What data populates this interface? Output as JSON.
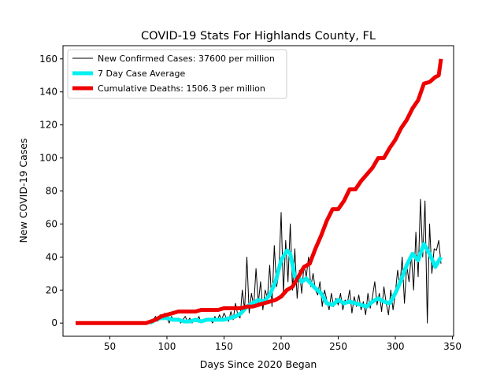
{
  "chart_data": {
    "type": "line",
    "title": "COVID-19 Stats For Highlands County, FL",
    "xlabel": "Days Since 2020 Began",
    "ylabel": "New COVID-19 Cases",
    "xlim": [
      9,
      351
    ],
    "ylim": [
      -8,
      168
    ],
    "xticks": [
      50,
      100,
      150,
      200,
      250,
      300,
      350
    ],
    "yticks": [
      0,
      20,
      40,
      60,
      80,
      100,
      120,
      140,
      160
    ],
    "grid": false,
    "legend_position": "top-left",
    "series": [
      {
        "name": "New Confirmed Cases: 37600 per million",
        "color": "#000000",
        "width": 1,
        "x": [
          85,
          88,
          90,
          92,
          94,
          96,
          98,
          100,
          102,
          104,
          106,
          108,
          110,
          112,
          114,
          116,
          118,
          120,
          122,
          124,
          126,
          128,
          130,
          132,
          134,
          136,
          138,
          140,
          142,
          144,
          146,
          148,
          150,
          152,
          154,
          156,
          158,
          160,
          162,
          164,
          166,
          168,
          170,
          172,
          174,
          176,
          178,
          180,
          182,
          184,
          186,
          188,
          190,
          192,
          194,
          196,
          198,
          200,
          202,
          204,
          206,
          208,
          210,
          212,
          214,
          216,
          218,
          220,
          222,
          224,
          226,
          228,
          230,
          232,
          234,
          236,
          238,
          240,
          242,
          244,
          246,
          248,
          250,
          252,
          254,
          256,
          258,
          260,
          262,
          264,
          266,
          268,
          270,
          272,
          274,
          276,
          278,
          280,
          282,
          284,
          286,
          288,
          290,
          292,
          294,
          296,
          298,
          300,
          302,
          304,
          306,
          308,
          310,
          312,
          314,
          316,
          318,
          320,
          322,
          324,
          326,
          328,
          330,
          332,
          334,
          336,
          338,
          340
        ],
        "y": [
          0,
          2,
          4,
          1,
          5,
          2,
          6,
          3,
          0,
          4,
          2,
          1,
          3,
          0,
          2,
          4,
          1,
          3,
          0,
          2,
          1,
          4,
          0,
          2,
          1,
          3,
          2,
          0,
          4,
          1,
          5,
          2,
          6,
          3,
          1,
          7,
          2,
          12,
          5,
          3,
          20,
          8,
          40,
          6,
          18,
          10,
          33,
          12,
          25,
          8,
          20,
          15,
          35,
          10,
          47,
          22,
          30,
          67,
          18,
          50,
          25,
          60,
          20,
          45,
          15,
          32,
          18,
          35,
          28,
          40,
          22,
          30,
          20,
          17,
          25,
          10,
          20,
          14,
          8,
          18,
          10,
          15,
          11,
          18,
          8,
          14,
          12,
          20,
          6,
          16,
          10,
          17,
          8,
          13,
          5,
          18,
          9,
          16,
          25,
          11,
          18,
          7,
          22,
          12,
          5,
          20,
          8,
          18,
          32,
          22,
          40,
          12,
          35,
          25,
          42,
          20,
          55,
          28,
          75,
          40,
          74,
          0,
          60,
          30,
          45,
          44,
          50,
          36
        ],
        "_note": null
      },
      {
        "name": "7 Day Case Average",
        "color": "#00f0f0",
        "width": 5,
        "x": [
          85,
          90,
          95,
          100,
          105,
          110,
          115,
          120,
          125,
          130,
          135,
          140,
          145,
          150,
          155,
          160,
          165,
          170,
          175,
          180,
          185,
          190,
          195,
          200,
          205,
          208,
          212,
          215,
          218,
          222,
          226,
          230,
          235,
          240,
          245,
          250,
          255,
          260,
          265,
          270,
          275,
          280,
          285,
          290,
          295,
          300,
          305,
          310,
          315,
          320,
          325,
          330,
          335,
          340
        ],
        "y": [
          0,
          2,
          3,
          3,
          2,
          2,
          1,
          1,
          2,
          1,
          2,
          2,
          2,
          2,
          3,
          4,
          6,
          10,
          12,
          14,
          13,
          17,
          25,
          38,
          44,
          42,
          28,
          28,
          25,
          27,
          24,
          21,
          18,
          12,
          11,
          14,
          12,
          13,
          12,
          11,
          10,
          13,
          15,
          13,
          12,
          18,
          26,
          35,
          42,
          38,
          48,
          42,
          34,
          40
        ]
      },
      {
        "name": "Cumulative Deaths: 1506.3 per million",
        "color": "#ee0000",
        "width": 5,
        "x": [
          20,
          40,
          60,
          80,
          82,
          90,
          95,
          100,
          105,
          110,
          115,
          120,
          125,
          130,
          135,
          140,
          145,
          150,
          155,
          160,
          165,
          170,
          175,
          180,
          185,
          190,
          195,
          200,
          205,
          210,
          215,
          220,
          225,
          230,
          235,
          240,
          245,
          250,
          255,
          260,
          265,
          270,
          275,
          280,
          285,
          290,
          295,
          300,
          305,
          310,
          315,
          320,
          325,
          330,
          335,
          338,
          340
        ],
        "y": [
          0,
          0,
          0,
          0,
          0,
          2,
          4,
          5,
          6,
          7,
          7,
          7,
          7,
          8,
          8,
          8,
          8,
          9,
          9,
          9,
          9,
          10,
          10,
          11,
          12,
          13,
          14,
          16,
          20,
          22,
          28,
          34,
          36,
          45,
          53,
          62,
          69,
          69,
          74,
          81,
          81,
          86,
          90,
          94,
          100,
          100,
          106,
          111,
          118,
          123,
          130,
          135,
          145,
          146,
          149,
          150,
          160
        ]
      }
    ]
  }
}
